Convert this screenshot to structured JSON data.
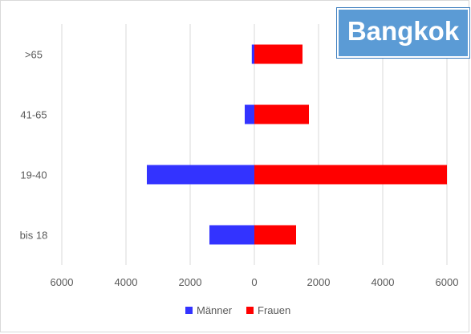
{
  "title": "Bangkok",
  "chart_data": {
    "type": "bar",
    "orientation": "horizontal",
    "style": "population-pyramid",
    "categories": [
      "bis 18",
      "19-40",
      "41-65",
      ">65"
    ],
    "series": [
      {
        "name": "Männer",
        "values": [
          1400,
          3350,
          300,
          80
        ],
        "color": "#3333ff",
        "direction": "left"
      },
      {
        "name": "Frauen",
        "values": [
          1300,
          6000,
          1700,
          1500
        ],
        "color": "#ff0000",
        "direction": "right"
      }
    ],
    "xlim": [
      -6000,
      6000
    ],
    "xticks": [
      "6000",
      "4000",
      "2000",
      "0",
      "2000",
      "4000",
      "6000"
    ],
    "grid": true,
    "legend_position": "bottom"
  }
}
